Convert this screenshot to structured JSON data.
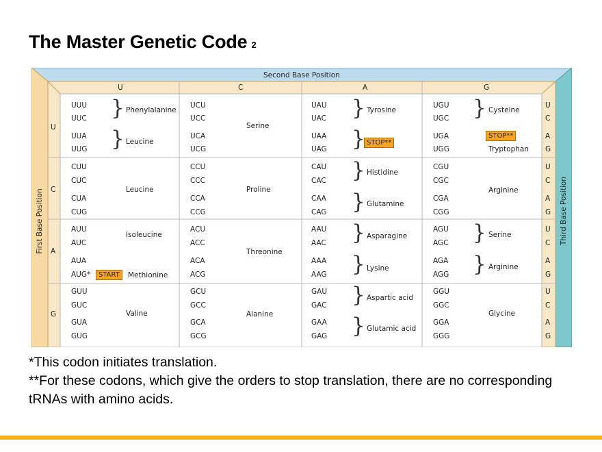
{
  "title": "The Master Genetic Code",
  "title_sub": "2",
  "table": {
    "header": "Second Base Position",
    "left_label": "First Base Position",
    "right_label": "Third Base Position",
    "second_bases": [
      "U",
      "C",
      "A",
      "G"
    ],
    "first_bases": [
      "U",
      "C",
      "A",
      "G"
    ],
    "third_bases": [
      "U",
      "C",
      "A",
      "G"
    ],
    "codons": [
      [
        "UUU",
        "UUC",
        "UUA",
        "UUG",
        "UCU",
        "UCC",
        "UCA",
        "UCG",
        "UAU",
        "UAC",
        "UAA",
        "UAG",
        "UGU",
        "UGC",
        "UGA",
        "UGG"
      ],
      [
        "CUU",
        "CUC",
        "CUA",
        "CUG",
        "CCU",
        "CCC",
        "CCA",
        "CCG",
        "CAU",
        "CAC",
        "CAA",
        "CAG",
        "CGU",
        "CGC",
        "CGA",
        "CGG"
      ],
      [
        "AUU",
        "AUC",
        "AUA",
        "AUG*",
        "ACU",
        "ACC",
        "ACA",
        "ACG",
        "AAU",
        "AAC",
        "AAA",
        "AAG",
        "AGU",
        "AGC",
        "AGA",
        "AGG"
      ],
      [
        "GUU",
        "GUC",
        "GUA",
        "GUG",
        "GCU",
        "GCC",
        "GCA",
        "GCG",
        "GAU",
        "GAC",
        "GAA",
        "GAG",
        "GGU",
        "GGC",
        "GGA",
        "GGG"
      ]
    ],
    "amino_acids": {
      "phe": "Phenylalanine",
      "leu1": "Leucine",
      "ser1": "Serine",
      "tyr": "Tyrosine",
      "stop_uaa": "STOP**",
      "cys": "Cysteine",
      "stop_uga": "STOP**",
      "trp": "Tryptophan",
      "leu2": "Leucine",
      "pro": "Proline",
      "his": "Histidine",
      "gln": "Glutamine",
      "arg1": "Arginine",
      "ile": "Isoleucine",
      "start": "START",
      "met": "Methionine",
      "thr": "Threonine",
      "asn": "Asparagine",
      "lys": "Lysine",
      "ser2": "Serine",
      "arg2": "Arginine",
      "val": "Valine",
      "ala": "Alanine",
      "asp": "Aspartic acid",
      "glu": "Glutamic acid",
      "gly": "Glycine"
    },
    "colors": {
      "header_band": "#bcdcee",
      "side_band": "#f6d9a3",
      "right_band": "#7cc8cc",
      "inner_band": "#f9e8c8",
      "box": "#f6a623"
    }
  },
  "footnotes": {
    "note1": "*This codon initiates translation.",
    "note2": "**For these codons, which give the orders to stop translation, there are no corresponding tRNAs with amino acids."
  }
}
